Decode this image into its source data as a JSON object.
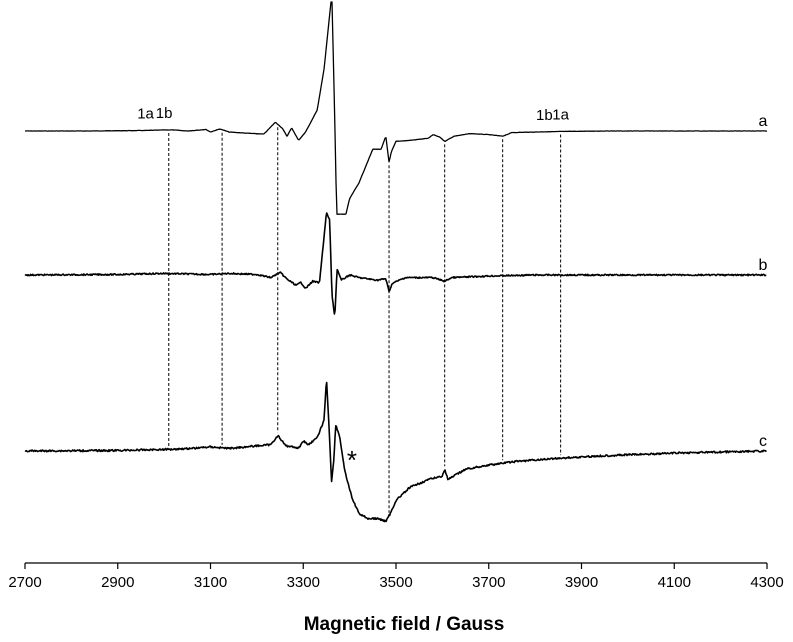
{
  "chart_data": {
    "type": "line",
    "title": "",
    "xlabel": "Magnetic field / Gauss",
    "ylabel": "",
    "xlim": [
      2700,
      4300
    ],
    "xticks": [
      2700,
      2900,
      3100,
      3300,
      3500,
      3700,
      3900,
      4100,
      4300
    ],
    "grid": false,
    "legend": "none",
    "series": [
      {
        "label": "a",
        "clipped_top": true,
        "points": [
          [
            2700,
            0.0
          ],
          [
            2840,
            0.0
          ],
          [
            2960,
            0.01
          ],
          [
            3000,
            0.02
          ],
          [
            3020,
            0.02
          ],
          [
            3050,
            0.0
          ],
          [
            3090,
            0.03
          ],
          [
            3100,
            -0.02
          ],
          [
            3120,
            0.04
          ],
          [
            3140,
            -0.02
          ],
          [
            3175,
            -0.04
          ],
          [
            3215,
            -0.06
          ],
          [
            3240,
            0.17
          ],
          [
            3255,
            0.05
          ],
          [
            3265,
            -0.1
          ],
          [
            3275,
            0.06
          ],
          [
            3290,
            -0.18
          ],
          [
            3305,
            -0.02
          ],
          [
            3330,
            0.4
          ],
          [
            3345,
            1.2
          ],
          [
            3360,
            2.5
          ],
          [
            3362,
            2.5
          ],
          [
            3368,
            0.2
          ],
          [
            3372,
            -1.6
          ],
          [
            3380,
            -1.6
          ],
          [
            3392,
            -1.6
          ],
          [
            3400,
            -1.3
          ],
          [
            3420,
            -1.0
          ],
          [
            3450,
            -0.35
          ],
          [
            3468,
            -0.35
          ],
          [
            3478,
            -0.1
          ],
          [
            3485,
            -0.6
          ],
          [
            3490,
            -0.4
          ],
          [
            3500,
            -0.2
          ],
          [
            3530,
            -0.18
          ],
          [
            3570,
            -0.14
          ],
          [
            3580,
            -0.07
          ],
          [
            3595,
            -0.12
          ],
          [
            3605,
            -0.2
          ],
          [
            3625,
            -0.1
          ],
          [
            3660,
            -0.05
          ],
          [
            3700,
            -0.07
          ],
          [
            3730,
            -0.1
          ],
          [
            3750,
            -0.03
          ],
          [
            3850,
            -0.01
          ],
          [
            3950,
            0.0
          ],
          [
            4100,
            0.0
          ],
          [
            4300,
            0.0
          ]
        ]
      },
      {
        "label": "b",
        "points": [
          [
            2700,
            0.0
          ],
          [
            2900,
            0.01
          ],
          [
            3000,
            0.03
          ],
          [
            3050,
            0.02
          ],
          [
            3100,
            0.01
          ],
          [
            3140,
            0.03
          ],
          [
            3200,
            0.01
          ],
          [
            3230,
            -0.05
          ],
          [
            3250,
            0.05
          ],
          [
            3265,
            -0.08
          ],
          [
            3285,
            -0.2
          ],
          [
            3295,
            -0.14
          ],
          [
            3305,
            -0.26
          ],
          [
            3320,
            -0.12
          ],
          [
            3335,
            -0.15
          ],
          [
            3350,
            1.2
          ],
          [
            3357,
            1.05
          ],
          [
            3362,
            -0.4
          ],
          [
            3368,
            -0.8
          ],
          [
            3373,
            0.12
          ],
          [
            3382,
            -0.1
          ],
          [
            3400,
            0.0
          ],
          [
            3420,
            -0.05
          ],
          [
            3460,
            -0.1
          ],
          [
            3478,
            -0.07
          ],
          [
            3485,
            -0.32
          ],
          [
            3492,
            -0.16
          ],
          [
            3520,
            -0.05
          ],
          [
            3580,
            -0.05
          ],
          [
            3605,
            -0.12
          ],
          [
            3620,
            -0.05
          ],
          [
            3700,
            -0.02
          ],
          [
            3800,
            0.0
          ],
          [
            4300,
            0.0
          ]
        ]
      },
      {
        "label": "c",
        "points": [
          [
            2700,
            0.0
          ],
          [
            2900,
            0.01
          ],
          [
            3000,
            0.03
          ],
          [
            3060,
            0.05
          ],
          [
            3100,
            0.08
          ],
          [
            3140,
            0.05
          ],
          [
            3200,
            0.1
          ],
          [
            3230,
            0.12
          ],
          [
            3245,
            0.3
          ],
          [
            3262,
            0.1
          ],
          [
            3280,
            0.08
          ],
          [
            3290,
            0.05
          ],
          [
            3300,
            0.2
          ],
          [
            3310,
            0.12
          ],
          [
            3330,
            0.25
          ],
          [
            3345,
            0.6
          ],
          [
            3350,
            1.4
          ],
          [
            3356,
            0.4
          ],
          [
            3361,
            -0.6
          ],
          [
            3366,
            -0.15
          ],
          [
            3370,
            0.5
          ],
          [
            3378,
            0.3
          ],
          [
            3390,
            -0.4
          ],
          [
            3405,
            -0.9
          ],
          [
            3420,
            -1.2
          ],
          [
            3440,
            -1.3
          ],
          [
            3460,
            -1.3
          ],
          [
            3478,
            -1.35
          ],
          [
            3488,
            -1.2
          ],
          [
            3500,
            -0.95
          ],
          [
            3530,
            -0.7
          ],
          [
            3570,
            -0.55
          ],
          [
            3600,
            -0.48
          ],
          [
            3605,
            -0.35
          ],
          [
            3612,
            -0.55
          ],
          [
            3650,
            -0.35
          ],
          [
            3700,
            -0.27
          ],
          [
            3760,
            -0.2
          ],
          [
            3850,
            -0.14
          ],
          [
            3950,
            -0.09
          ],
          [
            4100,
            -0.04
          ],
          [
            4200,
            -0.02
          ],
          [
            4300,
            0.0
          ]
        ]
      }
    ],
    "reference_lines_x": [
      3010,
      3125,
      3245,
      3485,
      3605,
      3730,
      3855
    ],
    "annotations": [
      {
        "text": "1a",
        "x": 2960,
        "trace": "a"
      },
      {
        "text": "1b",
        "x": 3000,
        "trace": "a"
      },
      {
        "text": "1b",
        "x": 3820,
        "trace": "a"
      },
      {
        "text": "1a",
        "x": 3855,
        "trace": "a"
      },
      {
        "text": "*",
        "x": 3405,
        "trace": "c"
      }
    ]
  }
}
